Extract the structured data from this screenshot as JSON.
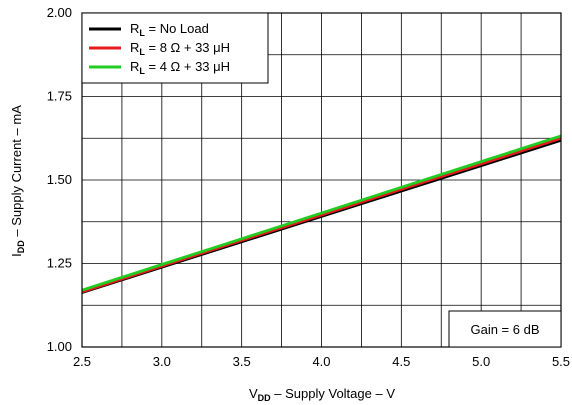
{
  "chart_data": {
    "type": "line",
    "x": [
      2.5,
      3.0,
      3.5,
      4.0,
      4.5,
      5.0,
      5.5
    ],
    "xlim": [
      2.5,
      5.5
    ],
    "ylim": [
      1.0,
      2.0
    ],
    "x_ticks": [
      "2.5",
      "3.0",
      "3.5",
      "4.0",
      "4.5",
      "5.0",
      "5.5"
    ],
    "y_ticks": [
      "1.00",
      "1.25",
      "1.50",
      "1.75",
      "2.00"
    ],
    "x_minor_step": 0.25,
    "y_minor_step": 0.125,
    "xlabel": {
      "main": "V",
      "sub": "DD",
      "rest": " – Supply Voltage – V"
    },
    "ylabel": {
      "main": "I",
      "sub": "DD",
      "rest": " – Supply Current – mA"
    },
    "grid": true,
    "legend_position": "top-left",
    "series": [
      {
        "name": "R_L = No Load",
        "label_main": "R",
        "label_sub": "L",
        "label_rest": " = No Load",
        "color": "#000000",
        "values": [
          1.163,
          1.239,
          1.315,
          1.391,
          1.467,
          1.543,
          1.619
        ]
      },
      {
        "name": "R_L = 8 Ω + 33 μH",
        "label_main": "R",
        "label_sub": "L",
        "label_rest": " = 8 Ω + 33 μH",
        "color": "#e41a1c",
        "values": [
          1.165,
          1.242,
          1.319,
          1.395,
          1.472,
          1.548,
          1.625
        ]
      },
      {
        "name": "R_L = 4 Ω + 33 μH",
        "label_main": "R",
        "label_sub": "L",
        "label_rest": " = 4 Ω + 33 μH",
        "color": "#22cc22",
        "values": [
          1.17,
          1.247,
          1.324,
          1.401,
          1.478,
          1.555,
          1.632
        ]
      }
    ],
    "annotation": "Gain = 6 dB"
  }
}
